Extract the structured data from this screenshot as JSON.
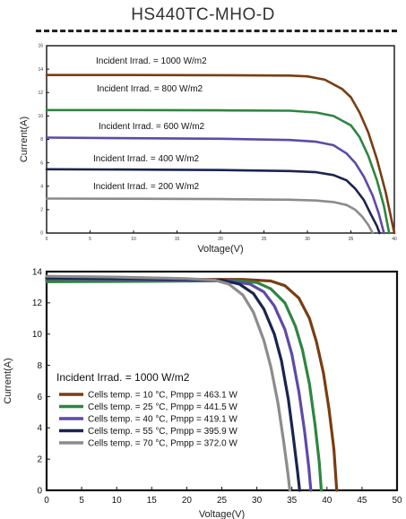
{
  "page": {
    "title": "HS440TC-MHO-D"
  },
  "chart_data": [
    {
      "type": "line",
      "title": "",
      "xlabel": "Voltage(V)",
      "ylabel": "Current(A)",
      "xlim": [
        0,
        40
      ],
      "ylim": [
        0,
        16
      ],
      "xticks": [
        "0",
        "5",
        "10",
        "15",
        "20",
        "25",
        "30",
        "35",
        "40"
      ],
      "yticks": [
        "0",
        "2",
        "4",
        "6",
        "8",
        "10",
        "12",
        "14",
        "16"
      ],
      "grid": false,
      "legend": "inline-labels",
      "series": [
        {
          "name": "Incident Irrad. = 1000 W/m2",
          "color": "#7a3d12",
          "points": [
            [
              0,
              13.5
            ],
            [
              10,
              13.5
            ],
            [
              20,
              13.48
            ],
            [
              28,
              13.45
            ],
            [
              30,
              13.38
            ],
            [
              32,
              13.1
            ],
            [
              34,
              12.3
            ],
            [
              35,
              11.6
            ],
            [
              36,
              10.3
            ],
            [
              37,
              8.6
            ],
            [
              38,
              6.3
            ],
            [
              39,
              3.5
            ],
            [
              39.6,
              1.4
            ],
            [
              40,
              0
            ]
          ]
        },
        {
          "name": "Incident Irrad. = 800 W/m2",
          "color": "#2e8540",
          "points": [
            [
              0,
              10.5
            ],
            [
              10,
              10.5
            ],
            [
              20,
              10.48
            ],
            [
              28,
              10.45
            ],
            [
              31,
              10.3
            ],
            [
              33,
              10.0
            ],
            [
              35,
              9.2
            ],
            [
              36,
              8.2
            ],
            [
              37,
              6.6
            ],
            [
              38,
              4.5
            ],
            [
              38.8,
              2.3
            ],
            [
              39.4,
              0
            ]
          ]
        },
        {
          "name": "Incident Irrad. = 600 W/m2",
          "color": "#5e4aa8",
          "points": [
            [
              0,
              8.15
            ],
            [
              10,
              8.1
            ],
            [
              20,
              8.05
            ],
            [
              28,
              7.95
            ],
            [
              31,
              7.8
            ],
            [
              33,
              7.5
            ],
            [
              34.5,
              6.8
            ],
            [
              35.5,
              6.0
            ],
            [
              36.5,
              4.8
            ],
            [
              37.5,
              3.2
            ],
            [
              38.2,
              1.7
            ],
            [
              38.8,
              0
            ]
          ]
        },
        {
          "name": "Incident Irrad. = 400 W/m2",
          "color": "#1a2450",
          "points": [
            [
              0,
              5.45
            ],
            [
              10,
              5.42
            ],
            [
              20,
              5.38
            ],
            [
              28,
              5.3
            ],
            [
              31,
              5.2
            ],
            [
              33,
              4.95
            ],
            [
              34.5,
              4.5
            ],
            [
              35.5,
              3.8
            ],
            [
              36.5,
              2.8
            ],
            [
              37.3,
              1.6
            ],
            [
              38,
              0.6
            ],
            [
              38.3,
              0
            ]
          ]
        },
        {
          "name": "Incident Irrad. = 200 W/m2",
          "color": "#8c8c8c",
          "points": [
            [
              0,
              2.95
            ],
            [
              10,
              2.93
            ],
            [
              20,
              2.9
            ],
            [
              28,
              2.85
            ],
            [
              31,
              2.78
            ],
            [
              33,
              2.65
            ],
            [
              34.5,
              2.4
            ],
            [
              35.5,
              2.0
            ],
            [
              36.3,
              1.4
            ],
            [
              37,
              0.7
            ],
            [
              37.5,
              0
            ]
          ]
        }
      ]
    },
    {
      "type": "line",
      "title": "",
      "xlabel": "Voltage(V)",
      "ylabel": "Current(A)",
      "xlim": [
        0,
        50
      ],
      "ylim": [
        0,
        14
      ],
      "xticks": [
        "0",
        "5",
        "10",
        "15",
        "20",
        "25",
        "30",
        "35",
        "40",
        "45",
        "50"
      ],
      "yticks": [
        "0",
        "2",
        "4",
        "6",
        "8",
        "10",
        "12",
        "14"
      ],
      "grid": false,
      "legend_title": "Incident Irrad. = 1000 W/m2",
      "legend": "lower-left",
      "series": [
        {
          "name": "Cells temp. = 10 °C,  Pmpp = 463.1 W",
          "color": "#7a3d12",
          "points": [
            [
              0,
              13.45
            ],
            [
              10,
              13.47
            ],
            [
              20,
              13.5
            ],
            [
              28,
              13.5
            ],
            [
              32,
              13.4
            ],
            [
              34,
              13.1
            ],
            [
              36,
              12.3
            ],
            [
              37.5,
              11.0
            ],
            [
              38.5,
              9.5
            ],
            [
              39.5,
              7.5
            ],
            [
              40.3,
              5.2
            ],
            [
              41,
              2.6
            ],
            [
              41.4,
              0
            ]
          ]
        },
        {
          "name": "Cells temp. = 25 °C,  Pmpp = 441.5 W",
          "color": "#2e8540",
          "points": [
            [
              0,
              13.35
            ],
            [
              10,
              13.37
            ],
            [
              20,
              13.4
            ],
            [
              27,
              13.42
            ],
            [
              30,
              13.3
            ],
            [
              32,
              12.9
            ],
            [
              34,
              12.0
            ],
            [
              35.5,
              10.5
            ],
            [
              36.5,
              9.0
            ],
            [
              37.5,
              6.8
            ],
            [
              38.3,
              4.2
            ],
            [
              38.9,
              1.8
            ],
            [
              39.2,
              0
            ]
          ]
        },
        {
          "name": "Cells temp. = 40 °C,  Pmpp = 419.1 W",
          "color": "#5e4aa8",
          "points": [
            [
              0,
              13.55
            ],
            [
              10,
              13.5
            ],
            [
              20,
              13.45
            ],
            [
              26,
              13.4
            ],
            [
              29,
              13.2
            ],
            [
              31,
              12.7
            ],
            [
              32.5,
              11.8
            ],
            [
              34,
              10.3
            ],
            [
              35,
              8.7
            ],
            [
              36,
              6.3
            ],
            [
              36.8,
              3.8
            ],
            [
              37.4,
              1.5
            ],
            [
              37.7,
              0
            ]
          ]
        },
        {
          "name": "Cells temp. = 55 °C,  Pmpp = 395.9 W",
          "color": "#1a2450",
          "points": [
            [
              0,
              13.6
            ],
            [
              10,
              13.55
            ],
            [
              20,
              13.5
            ],
            [
              25,
              13.45
            ],
            [
              27.5,
              13.2
            ],
            [
              29.5,
              12.6
            ],
            [
              31,
              11.6
            ],
            [
              32.5,
              10.0
            ],
            [
              33.5,
              8.3
            ],
            [
              34.5,
              5.8
            ],
            [
              35.2,
              3.4
            ],
            [
              35.8,
              1.2
            ],
            [
              36.1,
              0
            ]
          ]
        },
        {
          "name": "Cells temp. = 70 °C,  Pmpp = 372.0 W",
          "color": "#8c8c8c",
          "points": [
            [
              0,
              13.7
            ],
            [
              10,
              13.65
            ],
            [
              20,
              13.55
            ],
            [
              24,
              13.45
            ],
            [
              26,
              13.2
            ],
            [
              28,
              12.5
            ],
            [
              29.5,
              11.4
            ],
            [
              31,
              9.6
            ],
            [
              32,
              7.9
            ],
            [
              33,
              5.6
            ],
            [
              33.8,
              3.2
            ],
            [
              34.4,
              1.2
            ],
            [
              34.7,
              0
            ]
          ]
        }
      ]
    }
  ]
}
